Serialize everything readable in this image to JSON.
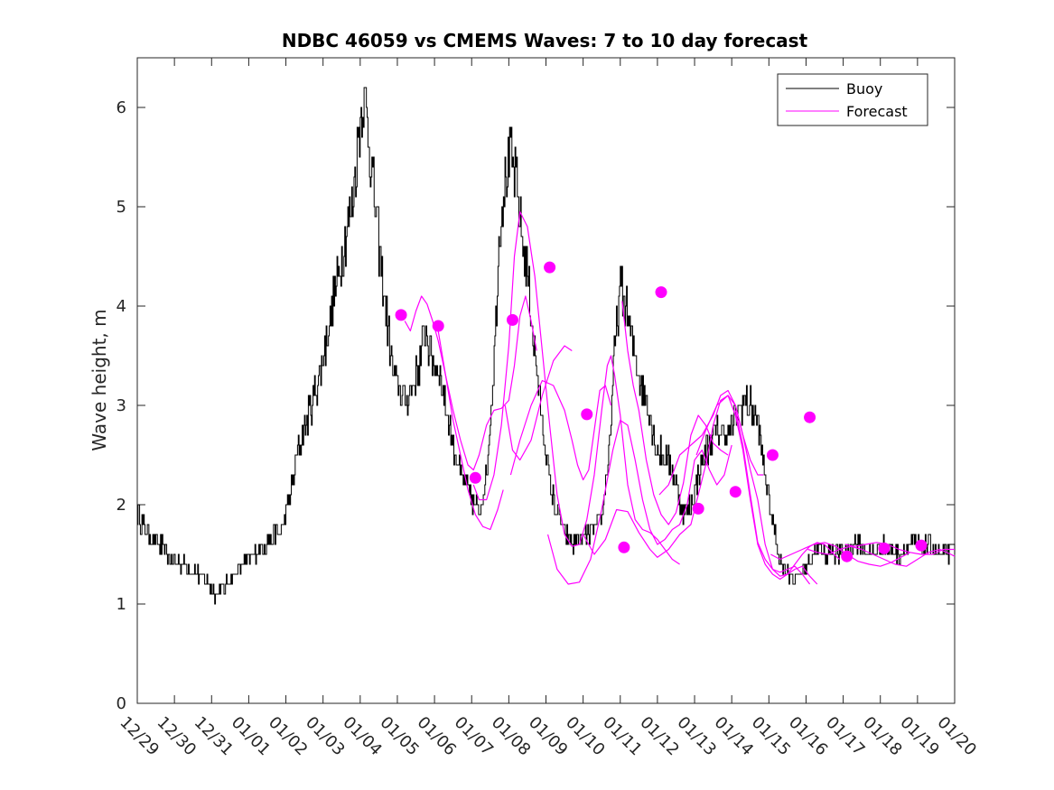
{
  "chart_data": {
    "type": "line",
    "title": "NDBC 46059 vs CMEMS Waves: 7 to 10 day forecast",
    "xlabel": "",
    "ylabel": "Wave height, m",
    "x_ticks": [
      "12/29",
      "12/30",
      "12/31",
      "01/01",
      "01/02",
      "01/03",
      "01/04",
      "01/05",
      "01/06",
      "01/07",
      "01/08",
      "01/09",
      "01/10",
      "01/11",
      "01/12",
      "01/13",
      "01/14",
      "01/15",
      "01/16",
      "01/17",
      "01/18",
      "01/19",
      "01/20"
    ],
    "xlim_days": [
      0,
      22
    ],
    "ylim": [
      0,
      6.5
    ],
    "y_ticks": [
      0,
      1,
      2,
      3,
      4,
      5,
      6
    ],
    "legend": {
      "position": "top-right",
      "entries": [
        "Buoy",
        "Forecast"
      ]
    },
    "colors": {
      "buoy": "#000000",
      "forecast": "#ff00ff",
      "axes": "#262626"
    },
    "buoy_anchors": [
      [
        0.0,
        1.9
      ],
      [
        0.3,
        1.7
      ],
      [
        0.6,
        1.6
      ],
      [
        0.9,
        1.45
      ],
      [
        1.3,
        1.4
      ],
      [
        1.6,
        1.3
      ],
      [
        1.9,
        1.2
      ],
      [
        2.1,
        1.1
      ],
      [
        2.3,
        1.15
      ],
      [
        2.6,
        1.3
      ],
      [
        3.0,
        1.45
      ],
      [
        3.4,
        1.6
      ],
      [
        3.7,
        1.7
      ],
      [
        3.9,
        1.75
      ],
      [
        4.1,
        2.05
      ],
      [
        4.3,
        2.5
      ],
      [
        4.6,
        2.9
      ],
      [
        4.9,
        3.3
      ],
      [
        5.1,
        3.7
      ],
      [
        5.4,
        4.3
      ],
      [
        5.6,
        4.7
      ],
      [
        5.8,
        5.1
      ],
      [
        5.95,
        5.7
      ],
      [
        6.05,
        6.1
      ],
      [
        6.15,
        6.0
      ],
      [
        6.3,
        5.4
      ],
      [
        6.5,
        4.6
      ],
      [
        6.7,
        3.9
      ],
      [
        6.85,
        3.4
      ],
      [
        7.0,
        3.2
      ],
      [
        7.2,
        3.05
      ],
      [
        7.4,
        3.2
      ],
      [
        7.6,
        3.45
      ],
      [
        7.75,
        3.75
      ],
      [
        7.9,
        3.5
      ],
      [
        8.1,
        3.4
      ],
      [
        8.3,
        3.0
      ],
      [
        8.5,
        2.6
      ],
      [
        8.7,
        2.3
      ],
      [
        8.9,
        2.15
      ],
      [
        9.05,
        2.0
      ],
      [
        9.2,
        1.95
      ],
      [
        9.4,
        2.3
      ],
      [
        9.6,
        3.5
      ],
      [
        9.75,
        4.8
      ],
      [
        9.9,
        5.3
      ],
      [
        10.05,
        5.5
      ],
      [
        10.2,
        5.2
      ],
      [
        10.35,
        4.7
      ],
      [
        10.5,
        4.3
      ],
      [
        10.7,
        3.5
      ],
      [
        10.9,
        2.8
      ],
      [
        11.1,
        2.2
      ],
      [
        11.3,
        1.9
      ],
      [
        11.5,
        1.7
      ],
      [
        11.7,
        1.6
      ],
      [
        11.9,
        1.65
      ],
      [
        12.1,
        1.7
      ],
      [
        12.3,
        1.75
      ],
      [
        12.5,
        1.85
      ],
      [
        12.7,
        2.6
      ],
      [
        12.85,
        3.6
      ],
      [
        13.0,
        4.2
      ],
      [
        13.15,
        4.0
      ],
      [
        13.35,
        3.55
      ],
      [
        13.55,
        3.25
      ],
      [
        13.75,
        3.0
      ],
      [
        13.95,
        2.6
      ],
      [
        14.15,
        2.5
      ],
      [
        14.35,
        2.4
      ],
      [
        14.5,
        2.2
      ],
      [
        14.7,
        1.9
      ],
      [
        14.9,
        2.0
      ],
      [
        15.1,
        2.3
      ],
      [
        15.3,
        2.55
      ],
      [
        15.5,
        2.7
      ],
      [
        15.7,
        2.75
      ],
      [
        15.9,
        2.7
      ],
      [
        16.1,
        2.85
      ],
      [
        16.3,
        3.05
      ],
      [
        16.5,
        3.0
      ],
      [
        16.7,
        2.8
      ],
      [
        16.9,
        2.3
      ],
      [
        17.1,
        1.8
      ],
      [
        17.3,
        1.45
      ],
      [
        17.5,
        1.3
      ],
      [
        17.7,
        1.25
      ],
      [
        17.9,
        1.35
      ],
      [
        18.1,
        1.45
      ],
      [
        18.3,
        1.55
      ],
      [
        18.5,
        1.5
      ],
      [
        18.7,
        1.55
      ],
      [
        18.9,
        1.5
      ],
      [
        19.1,
        1.55
      ],
      [
        19.3,
        1.6
      ],
      [
        19.5,
        1.55
      ],
      [
        19.7,
        1.5
      ],
      [
        19.9,
        1.55
      ],
      [
        20.1,
        1.6
      ],
      [
        20.3,
        1.55
      ],
      [
        20.5,
        1.5
      ],
      [
        20.7,
        1.55
      ],
      [
        20.9,
        1.6
      ],
      [
        21.1,
        1.55
      ],
      [
        21.3,
        1.6
      ],
      [
        21.5,
        1.55
      ],
      [
        21.7,
        1.5
      ],
      [
        21.9,
        1.55
      ],
      [
        22.0,
        1.55
      ]
    ],
    "forecast_segments": [
      [
        [
          7.2,
          3.85
        ],
        [
          7.35,
          3.75
        ],
        [
          7.5,
          3.95
        ],
        [
          7.65,
          4.1
        ],
        [
          7.8,
          4.02
        ],
        [
          7.95,
          3.85
        ],
        [
          8.1,
          3.65
        ],
        [
          8.3,
          3.3
        ],
        [
          8.5,
          2.95
        ],
        [
          8.7,
          2.65
        ],
        [
          8.9,
          2.4
        ],
        [
          9.05,
          2.35
        ],
        [
          9.2,
          2.5
        ],
        [
          9.4,
          2.8
        ],
        [
          9.6,
          2.95
        ],
        [
          9.8,
          2.97
        ],
        [
          10.0,
          3.05
        ],
        [
          10.15,
          3.4
        ],
        [
          10.3,
          3.9
        ],
        [
          10.45,
          4.1
        ],
        [
          10.6,
          3.85
        ],
        [
          10.75,
          3.55
        ]
      ],
      [
        [
          8.1,
          3.75
        ],
        [
          8.3,
          3.3
        ],
        [
          8.5,
          2.85
        ],
        [
          8.7,
          2.5
        ],
        [
          8.9,
          2.15
        ],
        [
          9.1,
          1.9
        ],
        [
          9.3,
          1.78
        ],
        [
          9.5,
          1.75
        ],
        [
          9.7,
          1.95
        ],
        [
          9.85,
          2.15
        ]
      ],
      [
        [
          9.05,
          2.2
        ],
        [
          9.2,
          2.05
        ],
        [
          9.4,
          2.05
        ],
        [
          9.6,
          2.3
        ],
        [
          9.8,
          2.8
        ],
        [
          10.0,
          3.6
        ],
        [
          10.15,
          4.5
        ],
        [
          10.3,
          4.95
        ],
        [
          10.5,
          4.8
        ],
        [
          10.7,
          4.3
        ],
        [
          10.9,
          3.55
        ],
        [
          11.1,
          2.8
        ],
        [
          11.3,
          2.1
        ],
        [
          11.5,
          1.7
        ],
        [
          11.7,
          1.58
        ],
        [
          11.9,
          1.6
        ],
        [
          12.1,
          1.85
        ],
        [
          12.3,
          2.3
        ],
        [
          12.5,
          2.95
        ],
        [
          12.65,
          3.4
        ],
        [
          12.75,
          3.5
        ],
        [
          12.85,
          3.3
        ],
        [
          13.0,
          2.9
        ],
        [
          13.2,
          2.2
        ],
        [
          13.4,
          1.85
        ],
        [
          13.6,
          1.75
        ],
        [
          13.8,
          1.72
        ],
        [
          14.0,
          1.65
        ],
        [
          14.2,
          1.55
        ],
        [
          14.4,
          1.45
        ],
        [
          14.6,
          1.4
        ]
      ],
      [
        [
          9.9,
          3.0
        ],
        [
          10.1,
          2.55
        ],
        [
          10.3,
          2.45
        ],
        [
          10.6,
          2.65
        ],
        [
          10.9,
          3.1
        ],
        [
          11.2,
          3.45
        ],
        [
          11.5,
          3.6
        ],
        [
          11.7,
          3.55
        ]
      ],
      [
        [
          10.05,
          2.3
        ],
        [
          10.3,
          2.65
        ],
        [
          10.6,
          3.0
        ],
        [
          10.9,
          3.25
        ],
        [
          11.2,
          3.2
        ],
        [
          11.5,
          2.95
        ],
        [
          11.7,
          2.65
        ],
        [
          11.85,
          2.4
        ],
        [
          12.0,
          2.25
        ],
        [
          12.15,
          2.35
        ],
        [
          12.3,
          2.75
        ],
        [
          12.45,
          3.15
        ],
        [
          12.6,
          3.2
        ],
        [
          12.75,
          3.0
        ]
      ],
      [
        [
          11.05,
          1.7
        ],
        [
          11.3,
          1.35
        ],
        [
          11.6,
          1.2
        ],
        [
          11.9,
          1.22
        ],
        [
          12.2,
          1.45
        ],
        [
          12.5,
          1.95
        ],
        [
          12.8,
          2.55
        ],
        [
          13.0,
          2.85
        ],
        [
          13.2,
          2.8
        ],
        [
          13.4,
          2.45
        ],
        [
          13.6,
          2.05
        ],
        [
          13.8,
          1.75
        ],
        [
          14.0,
          1.6
        ],
        [
          14.2,
          1.65
        ],
        [
          14.4,
          1.75
        ],
        [
          14.6,
          1.8
        ],
        [
          14.8,
          2.0
        ],
        [
          15.0,
          2.45
        ],
        [
          15.2,
          2.55
        ],
        [
          15.4,
          2.35
        ],
        [
          15.6,
          2.2
        ],
        [
          15.8,
          2.3
        ],
        [
          16.0,
          2.6
        ]
      ],
      [
        [
          12.0,
          1.7
        ],
        [
          12.3,
          1.5
        ],
        [
          12.6,
          1.65
        ],
        [
          12.9,
          1.95
        ],
        [
          13.2,
          1.93
        ],
        [
          13.5,
          1.72
        ],
        [
          13.8,
          1.55
        ],
        [
          14.0,
          1.47
        ],
        [
          14.3,
          1.55
        ],
        [
          14.6,
          1.7
        ],
        [
          14.9,
          1.8
        ],
        [
          15.1,
          2.1
        ],
        [
          15.3,
          2.4
        ],
        [
          15.5,
          2.8
        ],
        [
          15.7,
          3.05
        ],
        [
          15.9,
          3.1
        ],
        [
          16.1,
          3.0
        ],
        [
          16.3,
          2.7
        ],
        [
          16.5,
          2.35
        ],
        [
          16.7,
          2.05
        ],
        [
          16.9,
          1.6
        ],
        [
          17.1,
          1.35
        ],
        [
          17.3,
          1.32
        ],
        [
          17.5,
          1.35
        ],
        [
          17.7,
          1.38
        ],
        [
          17.9,
          1.3
        ],
        [
          18.1,
          1.2
        ]
      ],
      [
        [
          13.05,
          4.05
        ],
        [
          13.2,
          3.55
        ],
        [
          13.35,
          3.2
        ],
        [
          13.5,
          2.95
        ],
        [
          13.7,
          2.45
        ],
        [
          13.9,
          2.1
        ],
        [
          14.1,
          1.9
        ],
        [
          14.3,
          1.8
        ],
        [
          14.5,
          1.92
        ],
        [
          14.7,
          2.22
        ],
        [
          14.9,
          2.7
        ],
        [
          15.1,
          2.9
        ],
        [
          15.3,
          2.8
        ],
        [
          15.5,
          2.62
        ],
        [
          15.7,
          2.55
        ],
        [
          15.9,
          2.5
        ]
      ],
      [
        [
          14.05,
          2.1
        ],
        [
          14.3,
          2.2
        ],
        [
          14.6,
          2.5
        ],
        [
          14.9,
          2.6
        ],
        [
          15.2,
          2.7
        ],
        [
          15.5,
          2.9
        ],
        [
          15.7,
          3.1
        ],
        [
          15.9,
          3.15
        ],
        [
          16.1,
          3.0
        ],
        [
          16.3,
          2.7
        ],
        [
          16.5,
          2.45
        ],
        [
          16.7,
          2.3
        ],
        [
          16.85,
          2.3
        ]
      ],
      [
        [
          15.05,
          2.5
        ],
        [
          15.3,
          2.75
        ],
        [
          15.6,
          3.0
        ],
        [
          15.9,
          3.1
        ],
        [
          16.1,
          2.9
        ],
        [
          16.3,
          2.55
        ],
        [
          16.5,
          2.05
        ],
        [
          16.7,
          1.6
        ],
        [
          16.9,
          1.4
        ],
        [
          17.1,
          1.3
        ],
        [
          17.3,
          1.25
        ],
        [
          17.5,
          1.3
        ],
        [
          17.7,
          1.35
        ],
        [
          17.9,
          1.38
        ],
        [
          18.1,
          1.28
        ],
        [
          18.3,
          1.2
        ]
      ],
      [
        [
          16.1,
          2.95
        ],
        [
          16.3,
          2.6
        ],
        [
          16.5,
          2.1
        ],
        [
          16.7,
          1.62
        ],
        [
          16.9,
          1.45
        ],
        [
          17.1,
          1.35
        ],
        [
          17.3,
          1.28
        ],
        [
          17.5,
          1.3
        ],
        [
          17.7,
          1.4
        ],
        [
          17.9,
          1.5
        ],
        [
          18.1,
          1.58
        ],
        [
          18.3,
          1.62
        ],
        [
          18.5,
          1.6
        ],
        [
          18.7,
          1.52
        ],
        [
          18.9,
          1.45
        ]
      ],
      [
        [
          17.05,
          1.5
        ],
        [
          17.3,
          1.45
        ],
        [
          17.6,
          1.5
        ],
        [
          17.9,
          1.55
        ],
        [
          18.2,
          1.6
        ],
        [
          18.5,
          1.62
        ],
        [
          18.8,
          1.58
        ],
        [
          19.1,
          1.5
        ],
        [
          19.4,
          1.43
        ],
        [
          19.7,
          1.4
        ],
        [
          20.0,
          1.38
        ],
        [
          20.3,
          1.42
        ],
        [
          20.6,
          1.48
        ],
        [
          20.8,
          1.52
        ]
      ],
      [
        [
          18.05,
          1.55
        ],
        [
          18.3,
          1.52
        ],
        [
          18.6,
          1.5
        ],
        [
          18.9,
          1.55
        ],
        [
          19.2,
          1.58
        ],
        [
          19.5,
          1.55
        ],
        [
          19.8,
          1.5
        ],
        [
          20.1,
          1.45
        ],
        [
          20.4,
          1.4
        ],
        [
          20.7,
          1.38
        ],
        [
          21.0,
          1.45
        ],
        [
          21.3,
          1.52
        ],
        [
          21.6,
          1.55
        ],
        [
          21.9,
          1.5
        ],
        [
          22.0,
          1.48
        ]
      ],
      [
        [
          19.05,
          1.6
        ],
        [
          19.3,
          1.58
        ],
        [
          19.6,
          1.6
        ],
        [
          19.9,
          1.62
        ],
        [
          20.2,
          1.6
        ],
        [
          20.5,
          1.55
        ],
        [
          20.8,
          1.52
        ],
        [
          21.1,
          1.5
        ],
        [
          21.4,
          1.5
        ],
        [
          21.7,
          1.55
        ],
        [
          22.0,
          1.55
        ]
      ]
    ],
    "forecast_markers": [
      [
        7.1,
        3.91
      ],
      [
        8.1,
        3.8
      ],
      [
        9.1,
        2.27
      ],
      [
        10.1,
        3.86
      ],
      [
        11.1,
        4.39
      ],
      [
        12.1,
        2.91
      ],
      [
        13.1,
        1.57
      ],
      [
        14.1,
        4.14
      ],
      [
        15.1,
        1.96
      ],
      [
        16.1,
        2.13
      ],
      [
        17.1,
        2.5
      ],
      [
        18.1,
        2.88
      ],
      [
        19.1,
        1.48
      ],
      [
        20.1,
        1.56
      ],
      [
        21.1,
        1.59
      ]
    ]
  }
}
